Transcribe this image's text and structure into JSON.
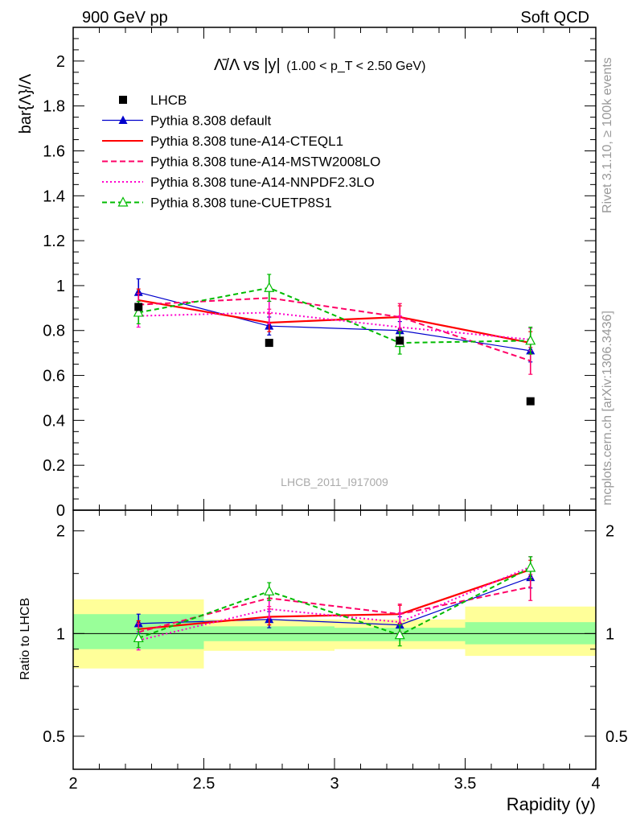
{
  "header": {
    "left": "900 GeV pp",
    "right": "Soft QCD"
  },
  "side_labels": {
    "top": "Rivet 3.1.10, ≥ 100k events",
    "bottom": "mcplots.cern.ch [arXiv:1306.3436]"
  },
  "watermark": "LHCB_2011_I917009",
  "chart_data": [
    {
      "type": "line",
      "title_main": "Λ̄/Λ vs |y|",
      "title_sub": "(1.00 < p_T < 2.50 GeV)",
      "ylabel": "bar{Λ}/Λ",
      "xlabel": "",
      "xlim": [
        2,
        4
      ],
      "ylim": [
        0,
        2.15
      ],
      "xticks": [
        2,
        2.5,
        3,
        3.5,
        4
      ],
      "yticks": [
        0,
        0.2,
        0.4,
        0.6,
        0.8,
        1,
        1.2,
        1.4,
        1.6,
        1.8,
        2
      ],
      "ytick_labels": [
        "0",
        "0.2",
        "0.4",
        "0.6",
        "0.8",
        "1",
        "1.2",
        "1.4",
        "1.6",
        "1.8",
        "2"
      ],
      "legend_placement": "top-left",
      "x": [
        2.25,
        2.75,
        3.25,
        3.75
      ],
      "data": {
        "name": "LHCB",
        "values": [
          0.905,
          0.745,
          0.755,
          0.485
        ]
      },
      "series": [
        {
          "name": "Pythia 8.308 default",
          "color": "#0000cc",
          "dash": "",
          "marker": "triangle-filled",
          "values": [
            0.97,
            0.82,
            0.8,
            0.71
          ],
          "errors": [
            0.06,
            0.04,
            0.04,
            0.05
          ]
        },
        {
          "name": "Pythia 8.308 tune-A14-CTEQL1",
          "color": "#ff0000",
          "dash": "",
          "marker": "none",
          "values": [
            0.935,
            0.835,
            0.86,
            0.745
          ],
          "errors": [
            0.05,
            0.04,
            0.05,
            0.05
          ]
        },
        {
          "name": "Pythia 8.308 tune-A14-MSTW2008LO",
          "color": "#ff0066",
          "dash": "7,4",
          "marker": "none",
          "values": [
            0.915,
            0.945,
            0.86,
            0.665
          ],
          "errors": [
            0.05,
            0.05,
            0.06,
            0.06
          ]
        },
        {
          "name": "Pythia 8.308 tune-A14-NNPDF2.3LO",
          "color": "#ff00cc",
          "dash": "2,3",
          "marker": "none",
          "values": [
            0.865,
            0.88,
            0.815,
            0.76
          ],
          "errors": [
            0.05,
            0.05,
            0.05,
            0.05
          ]
        },
        {
          "name": "Pythia 8.308 tune-CUETP8S1",
          "color": "#00bb00",
          "dash": "6,4",
          "marker": "triangle-open",
          "values": [
            0.88,
            0.99,
            0.745,
            0.755
          ],
          "errors": [
            0.05,
            0.06,
            0.05,
            0.06
          ]
        }
      ]
    },
    {
      "type": "line",
      "ylabel": "Ratio to LHCB",
      "xlabel": "Rapidity (y)",
      "xlim": [
        2,
        4
      ],
      "ylim": [
        0.4,
        2.3
      ],
      "ylog": true,
      "xticks": [
        2,
        2.5,
        3,
        3.5,
        4
      ],
      "xtick_labels": [
        "2",
        "2.5",
        "3",
        "3.5",
        "4"
      ],
      "yticks": [
        0.5,
        1,
        2
      ],
      "ytick_labels": [
        "0.5",
        "1",
        "2"
      ],
      "bands": [
        {
          "xmin": 2.0,
          "xmax": 2.5,
          "inner": [
            0.9,
            1.14
          ],
          "outer": [
            0.79,
            1.26
          ]
        },
        {
          "xmin": 2.5,
          "xmax": 3.0,
          "inner": [
            0.95,
            1.05
          ],
          "outer": [
            0.89,
            1.1
          ]
        },
        {
          "xmin": 3.0,
          "xmax": 3.5,
          "inner": [
            0.95,
            1.04
          ],
          "outer": [
            0.9,
            1.1
          ]
        },
        {
          "xmin": 3.5,
          "xmax": 4.0,
          "inner": [
            0.93,
            1.08
          ],
          "outer": [
            0.86,
            1.2
          ]
        }
      ],
      "x": [
        2.25,
        2.75,
        3.25,
        3.75
      ],
      "series": [
        {
          "name": "Pythia 8.308 default",
          "values": [
            1.07,
            1.1,
            1.06,
            1.46
          ],
          "errors": [
            0.07,
            0.06,
            0.06,
            0.1
          ]
        },
        {
          "name": "Pythia 8.308 tune-A14-CTEQL1",
          "values": [
            1.03,
            1.12,
            1.14,
            1.54
          ],
          "errors": [
            0.06,
            0.06,
            0.07,
            0.1
          ]
        },
        {
          "name": "Pythia 8.308 tune-A14-MSTW2008LO",
          "values": [
            1.01,
            1.27,
            1.14,
            1.37
          ],
          "errors": [
            0.06,
            0.07,
            0.08,
            0.12
          ]
        },
        {
          "name": "Pythia 8.308 tune-A14-NNPDF2.3LO",
          "values": [
            0.955,
            1.18,
            1.08,
            1.57
          ],
          "errors": [
            0.06,
            0.07,
            0.07,
            0.11
          ]
        },
        {
          "name": "Pythia 8.308 tune-CUETP8S1",
          "values": [
            0.97,
            1.33,
            0.99,
            1.56
          ],
          "errors": [
            0.06,
            0.08,
            0.07,
            0.12
          ]
        }
      ]
    }
  ]
}
